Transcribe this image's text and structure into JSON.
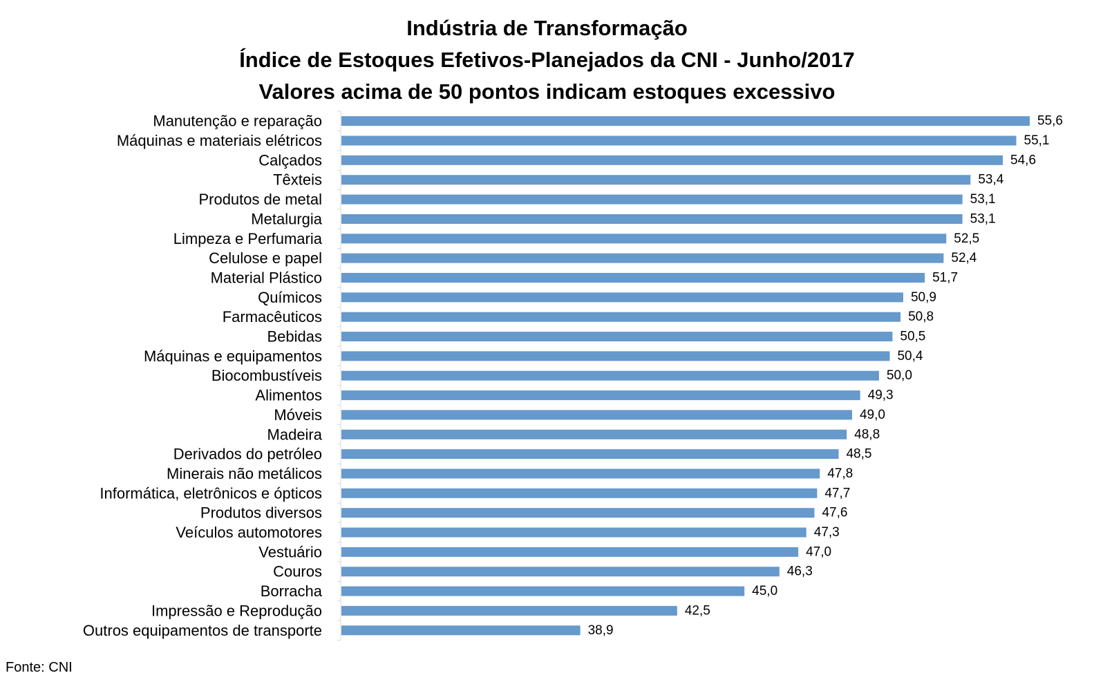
{
  "chart_data": {
    "type": "bar",
    "orientation": "horizontal",
    "title": [
      "Indústria de Transformação",
      "Índice de Estoques Efetivos-Planejados da CNI - Junho/2017",
      "Valores acima de 50 pontos indicam estoques excessivo"
    ],
    "categories": [
      "Manutenção e reparação",
      "Máquinas e materiais elétricos",
      "Calçados",
      "Têxteis",
      "Produtos de metal",
      "Metalurgia",
      "Limpeza e Perfumaria",
      "Celulose e papel",
      "Material Plástico",
      "Químicos",
      "Farmacêuticos",
      "Bebidas",
      "Máquinas e equipamentos",
      "Biocombustíveis",
      "Alimentos",
      "Móveis",
      "Madeira",
      "Derivados do petróleo",
      "Minerais não metálicos",
      "Informática, eletrônicos e ópticos",
      "Produtos diversos",
      "Veículos automotores",
      "Vestuário",
      "Couros",
      "Borracha",
      "Impressão e Reprodução",
      "Outros equipamentos de transporte"
    ],
    "values": [
      55.6,
      55.1,
      54.6,
      53.4,
      53.1,
      53.1,
      52.5,
      52.4,
      51.7,
      50.9,
      50.8,
      50.5,
      50.4,
      50.0,
      49.3,
      49.0,
      48.8,
      48.5,
      47.8,
      47.7,
      47.6,
      47.3,
      47.0,
      46.3,
      45.0,
      42.5,
      38.9
    ],
    "data_labels": [
      "55,6",
      "55,1",
      "54,6",
      "53,4",
      "53,1",
      "53,1",
      "52,5",
      "52,4",
      "51,7",
      "50,9",
      "50,8",
      "50,5",
      "50,4",
      "50,0",
      "49,3",
      "49,0",
      "48,8",
      "48,5",
      "47,8",
      "47,7",
      "47,6",
      "47,3",
      "47,0",
      "46,3",
      "45,0",
      "42,5",
      "38,9"
    ],
    "xlim": [
      30,
      55.6
    ],
    "x_axis_visible": false,
    "grid": false,
    "legend": "none",
    "bar_color": "#6699CC",
    "axis_color": "#D9D9D9"
  },
  "source": "Fonte: CNI"
}
